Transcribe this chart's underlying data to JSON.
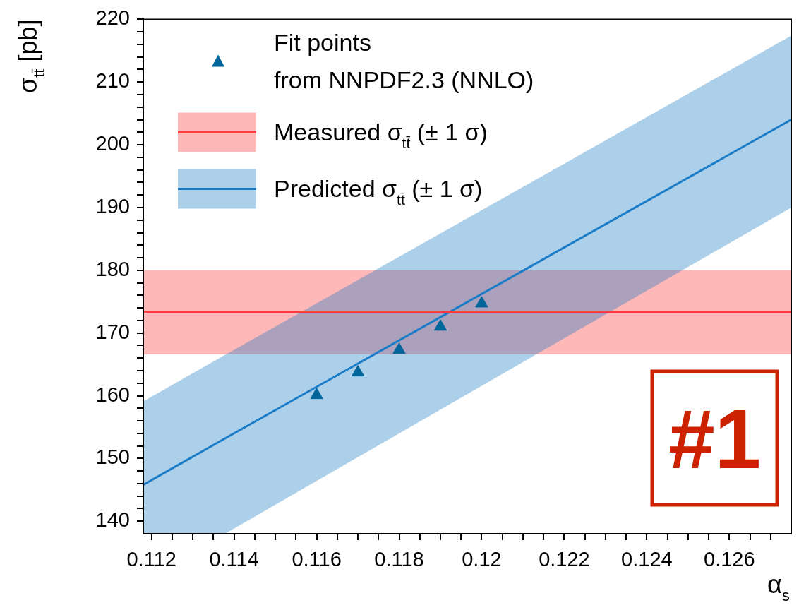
{
  "chart_data": {
    "type": "line",
    "xlabel": "α$_{s}$",
    "ylabel": "σ$_{tt̄}$ [pb]",
    "xlim": [
      0.1118,
      0.1275
    ],
    "ylim": [
      138,
      220
    ],
    "xticks": [
      {
        "value": 0.112,
        "label": "0.112"
      },
      {
        "value": 0.1125,
        "label": null
      },
      {
        "value": 0.113,
        "label": null
      },
      {
        "value": 0.1135,
        "label": null
      },
      {
        "value": 0.114,
        "label": "0.114"
      },
      {
        "value": 0.1145,
        "label": null
      },
      {
        "value": 0.115,
        "label": null
      },
      {
        "value": 0.1155,
        "label": null
      },
      {
        "value": 0.116,
        "label": "0.116"
      },
      {
        "value": 0.1165,
        "label": null
      },
      {
        "value": 0.117,
        "label": null
      },
      {
        "value": 0.1175,
        "label": null
      },
      {
        "value": 0.118,
        "label": "0.118"
      },
      {
        "value": 0.1185,
        "label": null
      },
      {
        "value": 0.119,
        "label": null
      },
      {
        "value": 0.1195,
        "label": null
      },
      {
        "value": 0.12,
        "label": "0.12"
      },
      {
        "value": 0.1205,
        "label": null
      },
      {
        "value": 0.121,
        "label": null
      },
      {
        "value": 0.1215,
        "label": null
      },
      {
        "value": 0.122,
        "label": "0.122"
      },
      {
        "value": 0.1225,
        "label": null
      },
      {
        "value": 0.123,
        "label": null
      },
      {
        "value": 0.1235,
        "label": null
      },
      {
        "value": 0.124,
        "label": "0.124"
      },
      {
        "value": 0.1245,
        "label": null
      },
      {
        "value": 0.125,
        "label": null
      },
      {
        "value": 0.1255,
        "label": null
      },
      {
        "value": 0.126,
        "label": "0.126"
      },
      {
        "value": 0.1265,
        "label": null
      },
      {
        "value": 0.127,
        "label": null
      }
    ],
    "yticks": [
      140,
      {
        "value": 142,
        "label": null
      },
      {
        "value": 144,
        "label": null
      },
      {
        "value": 146,
        "label": null
      },
      {
        "value": 148,
        "label": null
      },
      150,
      {
        "value": 152,
        "label": null
      },
      {
        "value": 154,
        "label": null
      },
      {
        "value": 156,
        "label": null
      },
      {
        "value": 158,
        "label": null
      },
      160,
      {
        "value": 162,
        "label": null
      },
      {
        "value": 164,
        "label": null
      },
      {
        "value": 166,
        "label": null
      },
      {
        "value": 168,
        "label": null
      },
      170,
      {
        "value": 172,
        "label": null
      },
      {
        "value": 174,
        "label": null
      },
      {
        "value": 176,
        "label": null
      },
      {
        "value": 178,
        "label": null
      },
      180,
      {
        "value": 182,
        "label": null
      },
      {
        "value": 184,
        "label": null
      },
      {
        "value": 186,
        "label": null
      },
      {
        "value": 188,
        "label": null
      },
      190,
      {
        "value": 192,
        "label": null
      },
      {
        "value": 194,
        "label": null
      },
      {
        "value": 196,
        "label": null
      },
      {
        "value": 198,
        "label": null
      },
      200,
      {
        "value": 202,
        "label": null
      },
      {
        "value": 204,
        "label": null
      },
      {
        "value": 206,
        "label": null
      },
      {
        "value": 208,
        "label": null
      },
      210,
      {
        "value": 212,
        "label": null
      },
      {
        "value": 214,
        "label": null
      },
      {
        "value": 216,
        "label": null
      },
      {
        "value": 218,
        "label": null
      },
      220
    ],
    "grid": false,
    "legend": "top left",
    "series": [
      {
        "type": "scatter",
        "name": "Fit points\nfrom NNPDF2.3 (NNLO)",
        "color": "#00659a",
        "marker": "triangle",
        "x": [
          0.116,
          0.117,
          0.118,
          0.119,
          0.12
        ],
        "values": [
          160.1,
          163.7,
          167.3,
          171,
          174.7
        ]
      },
      {
        "name": "Measured σ$_{tt̄}$ (± 1 σ)",
        "color": "#ff3b3b",
        "x": [
          0.1118,
          0.1275
        ],
        "values": [
          173.4,
          173.4
        ],
        "lower": [
          166.6,
          166.6
        ],
        "upper": [
          180,
          180
        ]
      },
      {
        "name": "Predicted σ$_{tt̄}$ (± 1 σ)",
        "color": "#1a7bc6",
        "x": [
          0.1118,
          0.11378,
          0.1275
        ],
        "values": [
          145.8,
          153.2,
          204
        ],
        "lower": [
          138,
          138,
          190
        ],
        "upper": [
          159.1,
          166.5,
          217.4
        ]
      }
    ],
    "annotations": [
      "#1"
    ]
  }
}
